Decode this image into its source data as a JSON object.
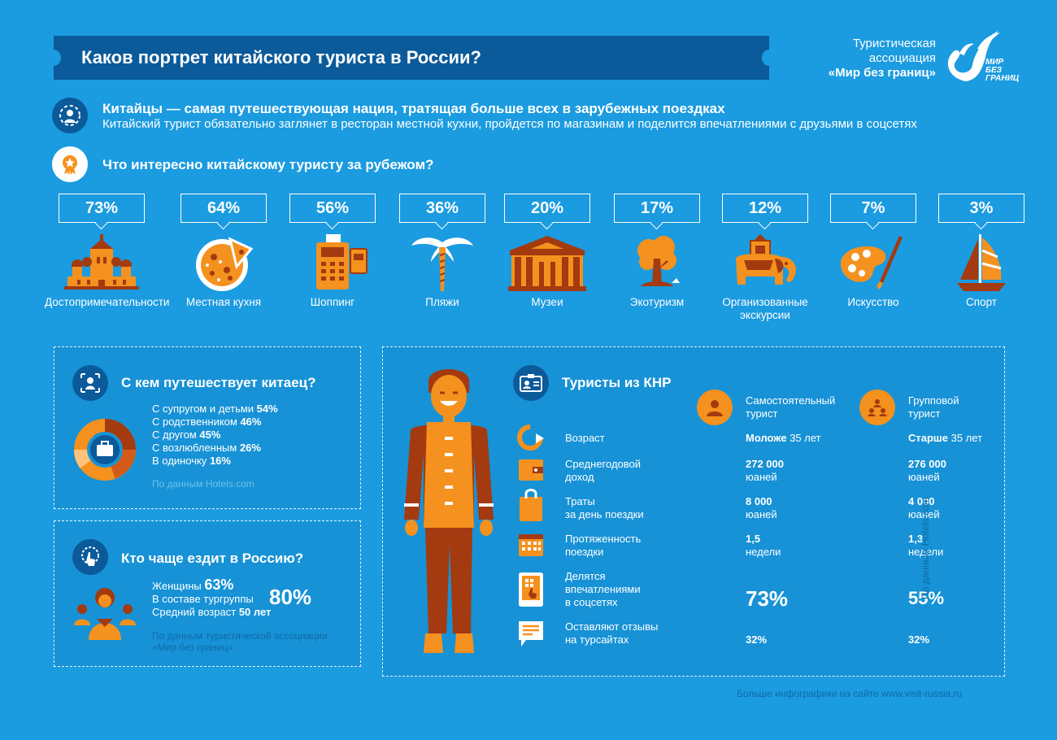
{
  "header": {
    "title": "Каков портрет китайского туриста в России?",
    "logo_line1": "Туристическая",
    "logo_line2": "ассоциация",
    "logo_line3": "«Мир без границ»",
    "logo_mark_text1": "МИР",
    "logo_mark_text2": "БЕЗ",
    "logo_mark_text3": "ГРАНИЦ"
  },
  "intro": {
    "headline": "Китайцы — самая путешествующая нация, тратящая больше всех в зарубежных поездках",
    "subline": "Китайский турист обязательно заглянет в ресторан местной кухни, пройдется по магазинам и поделится впечатлениями с друзьями в соцсетях"
  },
  "interests": {
    "question": "Что интересно китайскому туристу за рубежом?",
    "items": [
      {
        "pct": "73%",
        "label": "Достопримечательности",
        "icon": "landmark-icon"
      },
      {
        "pct": "64%",
        "label": "Местная кухня",
        "icon": "pizza-icon"
      },
      {
        "pct": "56%",
        "label": "Шоппинг",
        "icon": "payment-terminal-icon"
      },
      {
        "pct": "36%",
        "label": "Пляжи",
        "icon": "palm-icon"
      },
      {
        "pct": "20%",
        "label": "Музеи",
        "icon": "museum-icon"
      },
      {
        "pct": "17%",
        "label": "Экотуризм",
        "icon": "tree-icon"
      },
      {
        "pct": "12%",
        "label": "Организованные экскурсии",
        "icon": "elephant-icon"
      },
      {
        "pct": "7%",
        "label": "Искусство",
        "icon": "palette-icon"
      },
      {
        "pct": "3%",
        "label": "Спорт",
        "icon": "sailboat-icon"
      }
    ]
  },
  "companions": {
    "title": "С кем путешествует китаец?",
    "items": [
      {
        "label": "С супругом и детьми",
        "value": "54%"
      },
      {
        "label": "С родственником",
        "value": "46%"
      },
      {
        "label": "С другом",
        "value": "45%"
      },
      {
        "label": "С возлюбленным",
        "value": "26%"
      },
      {
        "label": "В одиночку",
        "value": "16%"
      }
    ],
    "source": "По данным Hotels.com"
  },
  "who": {
    "title": "Кто чаще ездит в Россию?",
    "women_label": "Женщины",
    "women_value": "63%",
    "group_label": "В составе тургруппы",
    "group_value": "80%",
    "age_label": "Средний возраст",
    "age_value": "50 лет",
    "source1": "По данным туристической ассоциации",
    "source2": "«Мир без границ»"
  },
  "tourists": {
    "title": "Туристы из КНР",
    "col1_line1": "Самостоятельный",
    "col1_line2": "турист",
    "col2_line1": "Групповой",
    "col2_line2": "турист",
    "rows": {
      "age": {
        "label": "Возраст",
        "v1_bold": "Моложе",
        "v1_rest": " 35 лет",
        "v2_bold": "Старше",
        "v2_rest": " 35 лет"
      },
      "income": {
        "label1": "Среднегодовой",
        "label2": "доход",
        "v1a": "272 000",
        "v1b": "юаней",
        "v2a": "276 000",
        "v2b": "юаней"
      },
      "spend": {
        "label1": "Траты",
        "label2": "за день поездки",
        "v1a": "8 000",
        "v1b": "юаней",
        "v2a": "4 000",
        "v2b": "юаней"
      },
      "duration": {
        "label1": "Протяженность",
        "label2": "поездки",
        "v1a": "1,5",
        "v1b": "недели",
        "v2a": "1,3",
        "v2b": "недели"
      },
      "social": {
        "label1": "Делятся",
        "label2": "впечатлениями",
        "label3": "в соцсетях",
        "v1": "73%",
        "v2": "55%"
      },
      "reviews": {
        "label1": "Оставляют отзывы",
        "label2": "на турсайтах",
        "v1": "32%",
        "v2": "32%"
      }
    },
    "source_vertical": "По данным Hotels.com"
  },
  "footer": {
    "text": "Больше инфографики на сайте www.visit-russia.ru"
  },
  "colors": {
    "background": "#1b9be0",
    "dark_blue": "#0b5a9a",
    "orange": "#f5911e",
    "brown": "#a33a10"
  }
}
